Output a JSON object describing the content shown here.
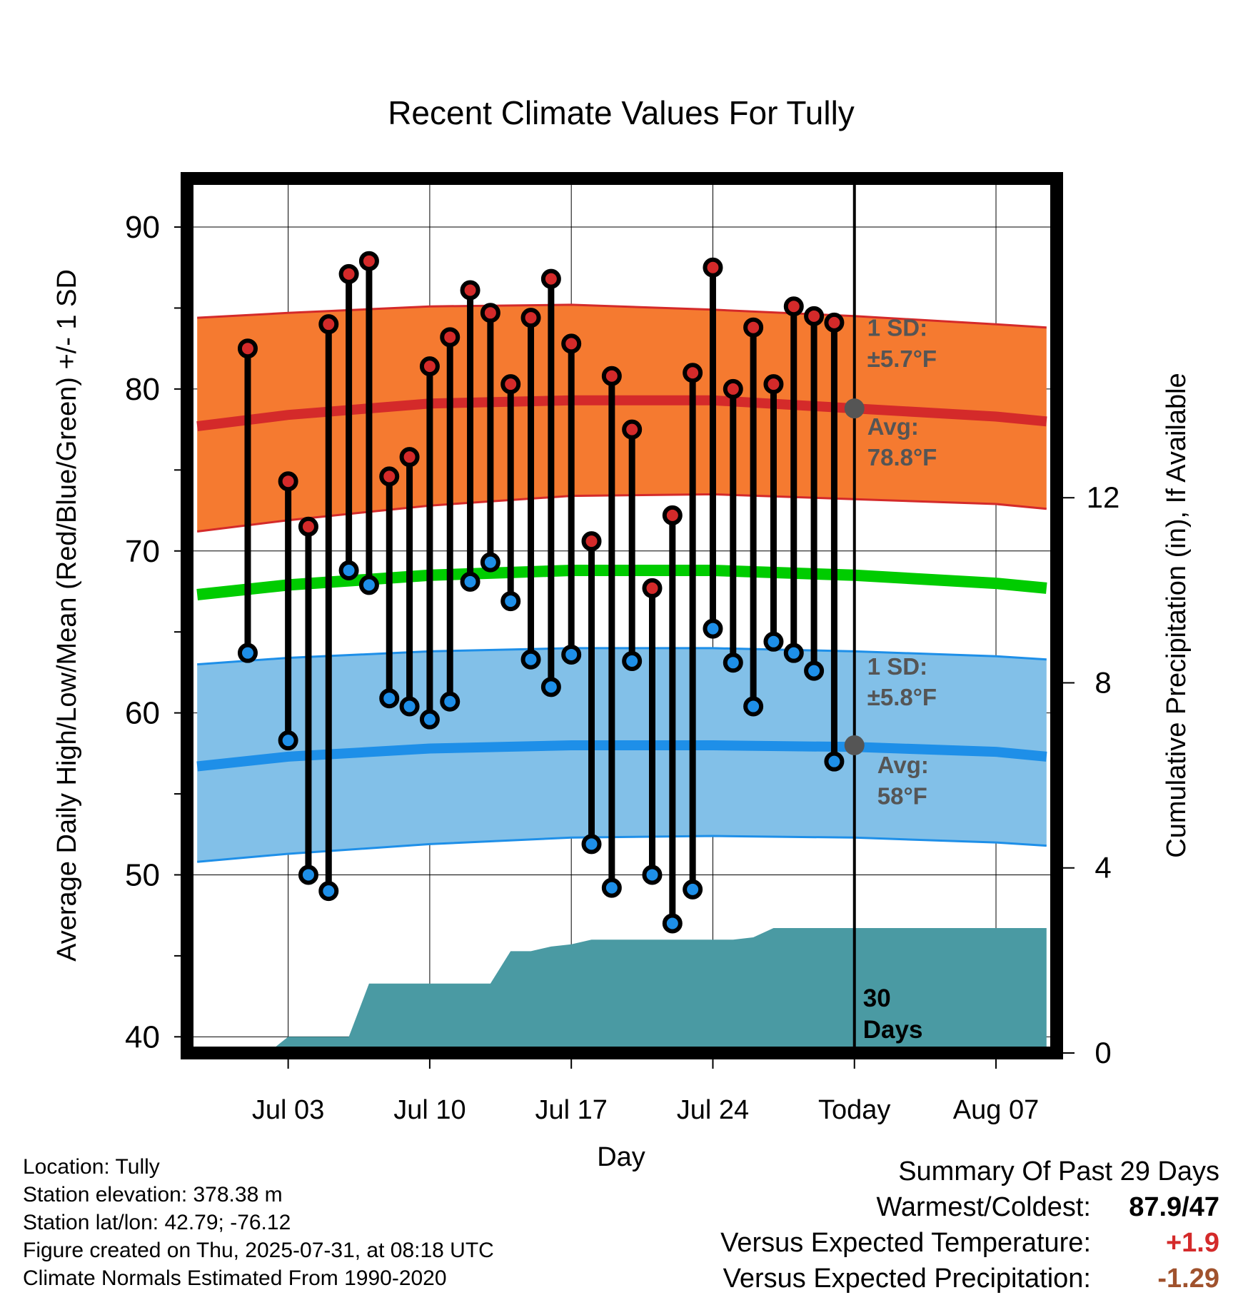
{
  "chart_data": {
    "type": "line",
    "title": "Recent Climate Values For Tully",
    "xlabel": "Day",
    "ylabel": "Average Daily High/Low/Mean (Red/Blue/Green) +/- 1 SD",
    "y2label": "Cumulative Precipitation (in), If Available",
    "xlim": [
      -3,
      40
    ],
    "ylim": [
      39,
      93
    ],
    "y2lim": [
      0,
      18.9
    ],
    "x_ticks": [
      {
        "day": 2,
        "label": "Jul 03"
      },
      {
        "day": 9,
        "label": "Jul 10"
      },
      {
        "day": 16,
        "label": "Jul 17"
      },
      {
        "day": 23,
        "label": "Jul 24"
      },
      {
        "day": 30,
        "label": "Today"
      },
      {
        "day": 37,
        "label": "Aug 07"
      }
    ],
    "y_ticks": [
      40,
      50,
      60,
      70,
      80,
      90
    ],
    "y2_ticks": [
      0,
      4,
      8,
      12
    ],
    "grid": true,
    "normals": {
      "x": [
        -2.5,
        2,
        9,
        16,
        23,
        30,
        37,
        39.5
      ],
      "high_mean": [
        77.7,
        78.4,
        79.1,
        79.3,
        79.3,
        78.8,
        78.3,
        78.0
      ],
      "high_upper": [
        84.4,
        84.7,
        85.1,
        85.2,
        84.9,
        84.5,
        84.0,
        83.8
      ],
      "high_lower": [
        71.2,
        71.9,
        72.8,
        73.4,
        73.5,
        73.2,
        72.9,
        72.6
      ],
      "mean": [
        67.3,
        67.9,
        68.5,
        68.8,
        68.8,
        68.5,
        68.0,
        67.7
      ],
      "low_mean": [
        56.7,
        57.3,
        57.8,
        58.0,
        58.0,
        57.9,
        57.6,
        57.3
      ],
      "low_upper": [
        63.0,
        63.4,
        63.8,
        64.0,
        64.0,
        63.8,
        63.5,
        63.3
      ],
      "low_lower": [
        50.8,
        51.3,
        51.9,
        52.3,
        52.4,
        52.3,
        52.0,
        51.8
      ]
    },
    "series": [
      {
        "name": "High",
        "color": "#d42a2a",
        "x": [
          0,
          2,
          3,
          4,
          5,
          6,
          7,
          8,
          9,
          10,
          11,
          12,
          13,
          14,
          15,
          16,
          17,
          18,
          19,
          20,
          21,
          22,
          23,
          24,
          25,
          26,
          27,
          28,
          29
        ],
        "values": [
          82.5,
          74.3,
          71.5,
          84.0,
          87.1,
          87.9,
          74.6,
          75.8,
          81.4,
          83.2,
          86.1,
          84.7,
          80.3,
          84.4,
          86.8,
          82.8,
          70.6,
          80.8,
          77.5,
          67.7,
          72.2,
          81.0,
          87.5,
          80.0,
          83.8,
          80.3,
          85.1,
          84.5,
          84.1
        ]
      },
      {
        "name": "Low",
        "color": "#1e8fe8",
        "x": [
          0,
          2,
          3,
          4,
          5,
          6,
          7,
          8,
          9,
          10,
          11,
          12,
          13,
          14,
          15,
          16,
          17,
          18,
          19,
          20,
          21,
          22,
          23,
          24,
          25,
          26,
          27,
          28,
          29
        ],
        "values": [
          63.7,
          58.3,
          50.0,
          49.0,
          68.8,
          67.9,
          60.9,
          60.4,
          59.6,
          60.7,
          68.1,
          69.3,
          66.9,
          63.3,
          61.6,
          63.6,
          51.9,
          49.2,
          63.2,
          50.0,
          47.0,
          49.1,
          65.2,
          63.1,
          60.4,
          64.4,
          63.7,
          62.6,
          57.0
        ]
      }
    ],
    "precipitation": {
      "x": [
        -3,
        1,
        2,
        5,
        6,
        10,
        11,
        12,
        13,
        14,
        15,
        16,
        17,
        18,
        19,
        20,
        21,
        22,
        23,
        24,
        25,
        26,
        27,
        28,
        29,
        30,
        39.5
      ],
      "values": [
        0,
        0,
        0.35,
        0.35,
        1.5,
        1.5,
        1.5,
        1.5,
        2.2,
        2.2,
        2.3,
        2.35,
        2.45,
        2.45,
        2.45,
        2.45,
        2.45,
        2.45,
        2.45,
        2.45,
        2.5,
        2.7,
        2.7,
        2.7,
        2.7,
        2.7,
        2.7
      ]
    },
    "annotations": {
      "high_sd_label": "1 SD:",
      "high_sd_value": "±5.7°F",
      "high_avg_label": "Avg:",
      "high_avg_value": "78.8°F",
      "high_avg": 78.8,
      "low_sd_label": "1 SD:",
      "low_sd_value": "±5.8°F",
      "low_avg_label": "Avg:",
      "low_avg_value": "58°F",
      "low_avg": 58.0,
      "days_number": "30",
      "days_word": "Days",
      "today_day": 30
    },
    "colors": {
      "high_band": "#f57a30",
      "high_line": "#d42a2a",
      "mean_line": "#00cc00",
      "low_band": "#82c0e8",
      "low_line": "#1e8fe8",
      "precip": "#4a9aa3",
      "avg_marker": "#555555",
      "annotation_text": "#555555"
    }
  },
  "info": {
    "location": "Location: Tully",
    "elevation": "Station elevation: 378.38 m",
    "latlon": "Station lat/lon: 42.79; -76.12",
    "created": "Figure created on Thu, 2025-07-31, at 08:18 UTC",
    "normals": "Climate Normals Estimated From 1990-2020"
  },
  "summary": {
    "title": "Summary Of Past 29 Days",
    "warmest_label": "Warmest/Coldest:",
    "warmest_value": "87.9/47",
    "temp_label": "Versus Expected Temperature:",
    "temp_value": "+1.9",
    "temp_color": "#d42a2a",
    "precip_label": "Versus Expected Precipitation:",
    "precip_value": "-1.29",
    "precip_color": "#a0522d"
  }
}
